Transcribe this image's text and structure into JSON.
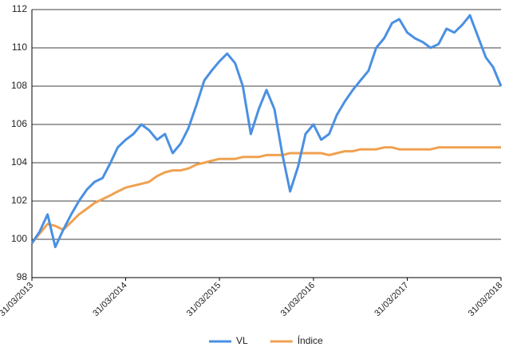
{
  "chart_data": {
    "type": "line",
    "x": [
      "2013-03-31",
      "2013-04-30",
      "2013-05-31",
      "2013-06-30",
      "2013-07-31",
      "2013-08-31",
      "2013-09-30",
      "2013-10-31",
      "2013-11-30",
      "2013-12-31",
      "2014-01-31",
      "2014-02-28",
      "2014-03-31",
      "2014-04-30",
      "2014-05-31",
      "2014-06-30",
      "2014-07-31",
      "2014-08-31",
      "2014-09-30",
      "2014-10-31",
      "2014-11-30",
      "2014-12-31",
      "2015-01-31",
      "2015-02-28",
      "2015-03-31",
      "2015-04-30",
      "2015-05-31",
      "2015-06-30",
      "2015-07-31",
      "2015-08-31",
      "2015-09-30",
      "2015-10-31",
      "2015-11-30",
      "2015-12-31",
      "2016-01-31",
      "2016-02-29",
      "2016-03-31",
      "2016-04-30",
      "2016-05-31",
      "2016-06-30",
      "2016-07-31",
      "2016-08-31",
      "2016-09-30",
      "2016-10-31",
      "2016-11-30",
      "2016-12-31",
      "2017-01-31",
      "2017-02-28",
      "2017-03-31",
      "2017-04-30",
      "2017-05-31",
      "2017-06-30",
      "2017-07-31",
      "2017-08-31",
      "2017-09-30",
      "2017-10-31",
      "2017-11-30",
      "2017-12-31",
      "2018-01-31",
      "2018-02-28",
      "2018-03-31"
    ],
    "series": [
      {
        "name": "VL",
        "color": "#4a90e2",
        "values": [
          99.8,
          100.4,
          101.3,
          99.6,
          100.5,
          101.3,
          102.0,
          102.6,
          103.0,
          103.2,
          104.0,
          104.8,
          105.2,
          105.5,
          106.0,
          105.7,
          105.2,
          105.5,
          104.5,
          105.0,
          105.8,
          107.0,
          108.3,
          108.8,
          109.3,
          109.7,
          109.2,
          108.0,
          105.5,
          106.8,
          107.8,
          106.8,
          104.5,
          102.5,
          103.8,
          105.5,
          106.0,
          105.2,
          105.5,
          106.5,
          107.2,
          107.8,
          108.3,
          108.8,
          110.0,
          110.5,
          111.3,
          111.5,
          110.8,
          110.5,
          110.3,
          110.0,
          110.2,
          111.0,
          110.8,
          111.2,
          111.7,
          110.6,
          109.5,
          109.0,
          108.0
        ]
      },
      {
        "name": "Índice",
        "color": "#f0a150",
        "values": [
          99.8,
          100.3,
          100.8,
          100.7,
          100.5,
          100.9,
          101.3,
          101.6,
          101.9,
          102.1,
          102.3,
          102.5,
          102.7,
          102.8,
          102.9,
          103.0,
          103.3,
          103.5,
          103.6,
          103.6,
          103.7,
          103.9,
          104.0,
          104.1,
          104.2,
          104.2,
          104.2,
          104.3,
          104.3,
          104.3,
          104.4,
          104.4,
          104.4,
          104.5,
          104.5,
          104.5,
          104.5,
          104.5,
          104.4,
          104.5,
          104.6,
          104.6,
          104.7,
          104.7,
          104.7,
          104.8,
          104.8,
          104.7,
          104.7,
          104.7,
          104.7,
          104.7,
          104.8,
          104.8,
          104.8,
          104.8,
          104.8,
          104.8,
          104.8,
          104.8,
          104.8
        ]
      }
    ],
    "xlim": [
      "2013-03-31",
      "2018-03-31"
    ],
    "xticks": [
      {
        "value": "2013-03-31",
        "label": "31/03/2013"
      },
      {
        "value": "2014-03-31",
        "label": "31/03/2014"
      },
      {
        "value": "2015-03-31",
        "label": "31/03/2015"
      },
      {
        "value": "2016-03-31",
        "label": "31/03/2016"
      },
      {
        "value": "2017-03-31",
        "label": "31/03/2017"
      },
      {
        "value": "2018-03-31",
        "label": "31/03/2018"
      }
    ],
    "ylim": [
      98,
      112
    ],
    "yticks": [
      98,
      100,
      102,
      104,
      106,
      108,
      110,
      112
    ],
    "grid": true,
    "legend": "bottom"
  }
}
